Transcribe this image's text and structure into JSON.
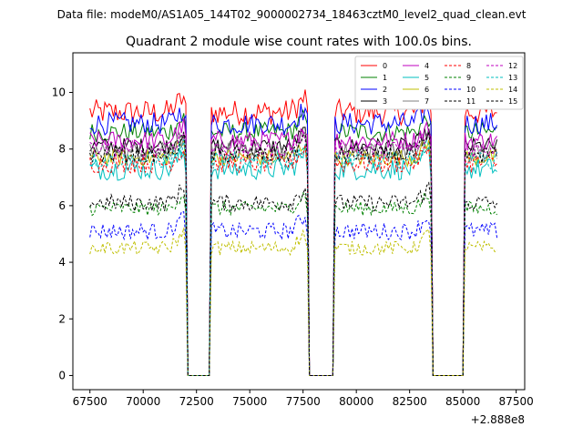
{
  "figure": {
    "suptitle": "Data file: modeM0/AS1A05_144T02_9000002734_18463cztM0_level2_quad_clean.evt"
  },
  "chart_data": {
    "type": "line",
    "title": "Quadrant 2 module wise count rates with 100.0s bins.",
    "xlabel": "",
    "ylabel": "",
    "x_offset_label": "+2.888e8",
    "xlim": [
      66700,
      87900
    ],
    "ylim": [
      -0.5,
      11.4
    ],
    "x_ticks": [
      67500,
      70000,
      72500,
      75000,
      77500,
      80000,
      82500,
      85000,
      87500
    ],
    "x_tick_labels": [
      "67500",
      "70000",
      "72500",
      "75000",
      "77500",
      "80000",
      "82500",
      "85000",
      "87500"
    ],
    "y_ticks": [
      0,
      2,
      4,
      6,
      8,
      10
    ],
    "y_tick_labels": [
      "0",
      "2",
      "4",
      "6",
      "8",
      "10"
    ],
    "bin_seconds": 100,
    "x_start": 67500,
    "x_end": 86600,
    "gaps": [
      [
        72000,
        73200
      ],
      [
        77700,
        79000
      ],
      [
        83500,
        85100
      ]
    ],
    "legend_position": "top-right",
    "series": [
      {
        "name": "0",
        "color": "#ff0000",
        "dash": "solid",
        "mean": 9.3,
        "noise": 0.45
      },
      {
        "name": "1",
        "color": "#008000",
        "dash": "solid",
        "mean": 8.6,
        "noise": 0.35
      },
      {
        "name": "2",
        "color": "#0000ff",
        "dash": "solid",
        "mean": 8.9,
        "noise": 0.4
      },
      {
        "name": "3",
        "color": "#000000",
        "dash": "solid",
        "mean": 8.1,
        "noise": 0.3
      },
      {
        "name": "4",
        "color": "#bf00bf",
        "dash": "solid",
        "mean": 8.3,
        "noise": 0.35
      },
      {
        "name": "5",
        "color": "#00bfbf",
        "dash": "solid",
        "mean": 7.3,
        "noise": 0.4
      },
      {
        "name": "6",
        "color": "#bfbf00",
        "dash": "solid",
        "mean": 7.7,
        "noise": 0.3
      },
      {
        "name": "7",
        "color": "#808080",
        "dash": "solid",
        "mean": 7.9,
        "noise": 0.35
      },
      {
        "name": "8",
        "color": "#ff0000",
        "dash": "dashed",
        "mean": 7.5,
        "noise": 0.35
      },
      {
        "name": "9",
        "color": "#008000",
        "dash": "dashed",
        "mean": 5.9,
        "noise": 0.25
      },
      {
        "name": "10",
        "color": "#0000ff",
        "dash": "dashed",
        "mean": 5.1,
        "noise": 0.3
      },
      {
        "name": "11",
        "color": "#000000",
        "dash": "dashed",
        "mean": 6.1,
        "noise": 0.3
      },
      {
        "name": "12",
        "color": "#bf00bf",
        "dash": "dashed",
        "mean": 8.0,
        "noise": 0.3
      },
      {
        "name": "13",
        "color": "#00bfbf",
        "dash": "dashed",
        "mean": 7.6,
        "noise": 0.3
      },
      {
        "name": "14",
        "color": "#bfbf00",
        "dash": "dashed",
        "mean": 4.5,
        "noise": 0.25
      },
      {
        "name": "15",
        "color": "#000000",
        "dash": "dashed",
        "mean": 7.8,
        "noise": 0.3
      }
    ]
  }
}
